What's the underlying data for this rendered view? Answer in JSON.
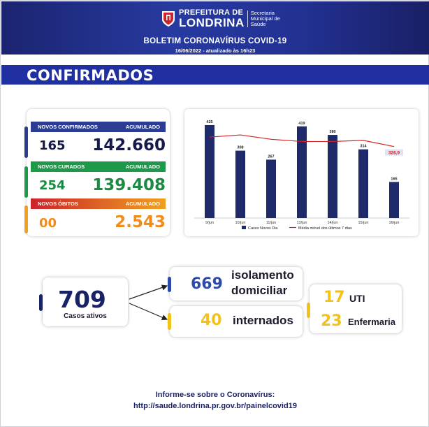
{
  "header": {
    "logo_top": "PREFEITURA DE",
    "logo_big": "LONDRINA",
    "logo_secretaria": "Secretaria",
    "logo_municipal": "Municipal de",
    "logo_saude": "Saúde",
    "title": "BOLETIM CORONAVÍRUS COVID-19",
    "date": "16/06/2022 - atualizado às 16h23"
  },
  "section": {
    "title": "CONFIRMADOS"
  },
  "counters": {
    "confirmados": {
      "label": "NOVOS CONFIRMADOS",
      "acc_label": "ACUMULADO",
      "new": "165",
      "total": "142.660",
      "color": "#2b3c93",
      "text_color": "#161a4a"
    },
    "curados": {
      "label": "NOVOS CURADOS",
      "acc_label": "ACUMULADO",
      "new": "254",
      "total": "139.408",
      "color": "#1c9a4a",
      "text_color": "#1b8a43"
    },
    "obitos": {
      "label": "NOVOS ÓBITOS",
      "acc_label": "ACUMULADO",
      "new": "00",
      "total": "2.543",
      "color": "#c9242a",
      "color2": "#f0a022",
      "text_color": "#f08c1e"
    }
  },
  "chart_data": {
    "type": "bar",
    "categories": [
      "9/jun",
      "10/jun",
      "11/jun",
      "13/jun",
      "14/jun",
      "15/jun",
      "16/jun"
    ],
    "series": [
      {
        "name": "Casos Novos Dia",
        "type": "bar",
        "values": [
          425,
          308,
          267,
          419,
          380,
          314,
          165
        ],
        "color": "#1f2a6b"
      },
      {
        "name": "Média móvel dos últimos 7 dias",
        "type": "line",
        "values": [
          370,
          380,
          360,
          350,
          350,
          355,
          326.9
        ],
        "color": "#d42020"
      }
    ],
    "highlight_label": "326,9",
    "ylim": [
      0,
      460
    ],
    "legend": "bottom"
  },
  "status": {
    "ativos_num": "709",
    "ativos_label": "Casos ativos",
    "isolamento_num": "669",
    "isolamento_line1": "isolamento",
    "isolamento_line2": "domiciliar",
    "internados_num": "40",
    "internados_label": "internados",
    "uti_num": "17",
    "uti_label": "UTI",
    "enfermaria_num": "23",
    "enfermaria_label": "Enfermaria",
    "navy": "#1a2266",
    "blue": "#2d4aa8",
    "yellow": "#f1c21b"
  },
  "footer": {
    "line1": "Informe-se sobre o Coronavírus:",
    "line2": "http://saude.londrina.pr.gov.br/painelcovid19"
  }
}
